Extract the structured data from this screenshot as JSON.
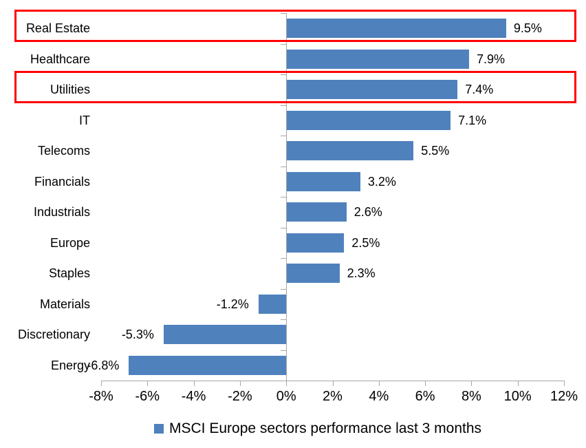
{
  "chart_data": {
    "type": "bar",
    "orientation": "horizontal",
    "title": "",
    "legend": {
      "label": "MSCI Europe sectors performance last 3 months",
      "position": "bottom"
    },
    "categories": [
      "Real Estate",
      "Healthcare",
      "Utilities",
      "IT",
      "Telecoms",
      "Financials",
      "Industrials",
      "Europe",
      "Staples",
      "Materials",
      "Discretionary",
      "Energy"
    ],
    "values": [
      9.5,
      7.9,
      7.4,
      7.1,
      5.5,
      3.2,
      2.6,
      2.5,
      2.3,
      -1.2,
      -5.3,
      -6.8
    ],
    "data_labels": [
      "9.5%",
      "7.9%",
      "7.4%",
      "7.1%",
      "5.5%",
      "3.2%",
      "2.6%",
      "2.5%",
      "2.3%",
      "-1.2%",
      "-5.3%",
      "-6.8%"
    ],
    "x_axis": {
      "min": -8,
      "max": 12,
      "tick_step": 2,
      "tick_labels": [
        "-8%",
        "-6%",
        "-4%",
        "-2%",
        "0%",
        "2%",
        "4%",
        "6%",
        "8%",
        "10%",
        "12%"
      ]
    },
    "highlighted_categories": [
      "Real Estate",
      "Utilities"
    ],
    "grid": false,
    "colors": {
      "bar": "#4F81BD",
      "axis": "#A6A6A6",
      "highlight_box": "#FF0000",
      "text": "#000000"
    }
  }
}
